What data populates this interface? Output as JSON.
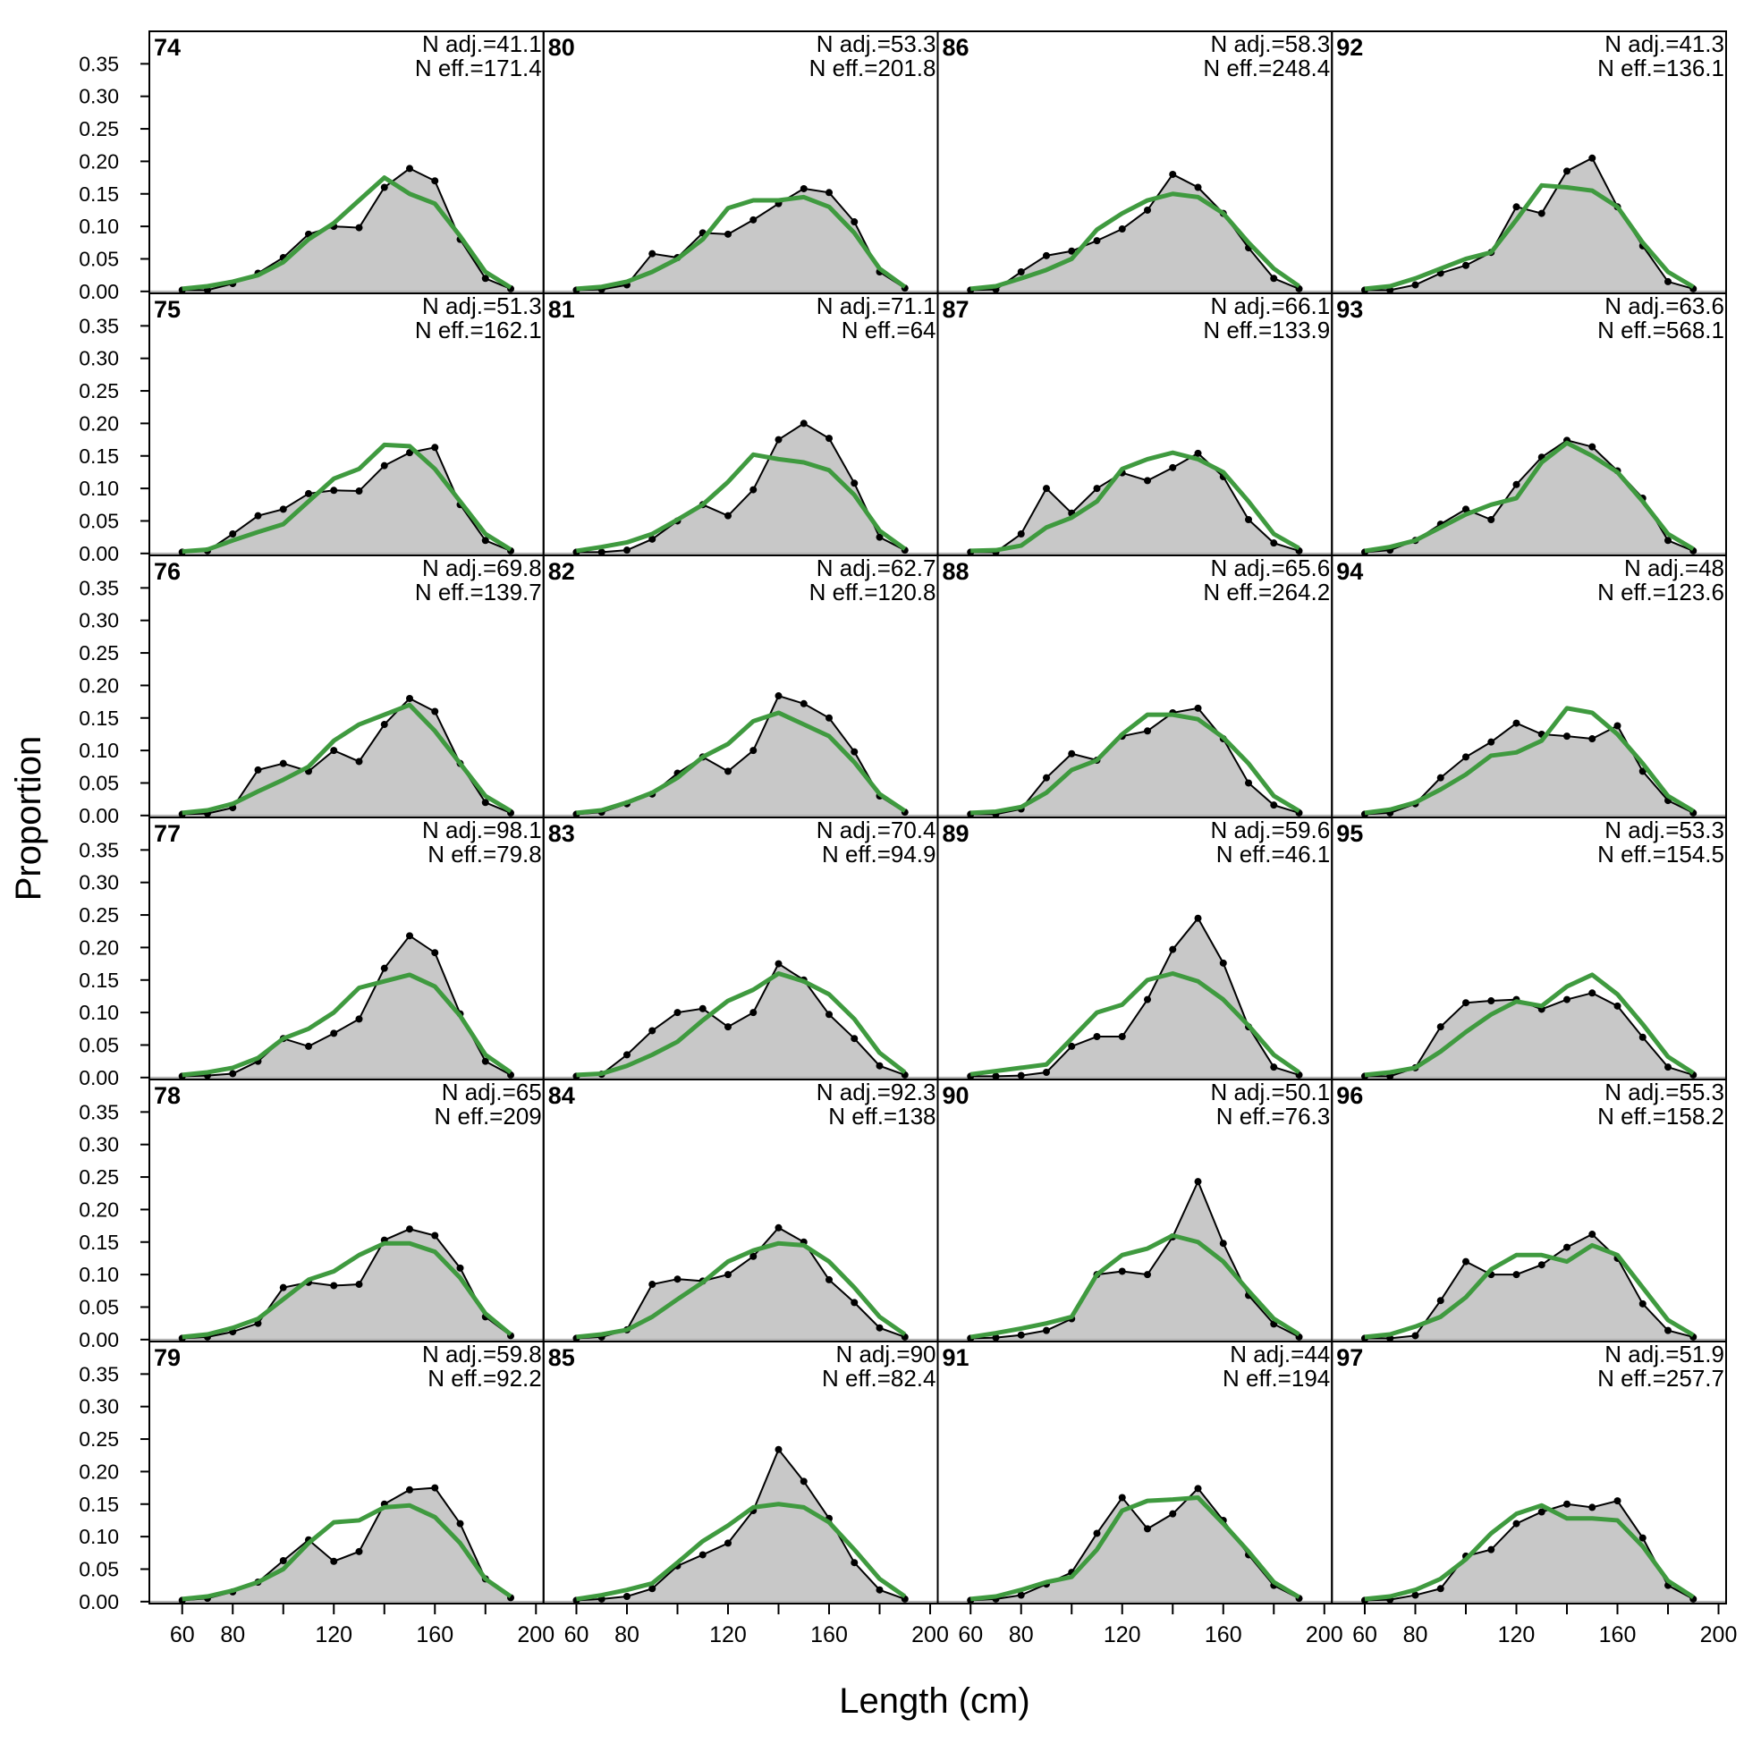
{
  "figure": {
    "xlabel": "Length (cm)",
    "ylabel": "Proportion",
    "xlim": [
      47,
      203
    ],
    "ylim": [
      -0.003,
      0.4
    ],
    "x_ticks": [
      60,
      80,
      120,
      160,
      200
    ],
    "y_ticks": [
      "0.00",
      "0.05",
      "0.10",
      "0.15",
      "0.20",
      "0.25",
      "0.30",
      "0.35"
    ],
    "colors": {
      "observed_fill": "#c8c8c8",
      "observed_line": "#000000",
      "expected_line": "#3f9a3f",
      "zero_line": "#b0b0b0"
    }
  },
  "chart_data": {
    "type": "line",
    "layout": "6 rows x 4 columns small multiples",
    "x": [
      60,
      70,
      80,
      90,
      100,
      110,
      120,
      130,
      140,
      150,
      160,
      170,
      180,
      190
    ],
    "panels": [
      {
        "year": "74",
        "n_adj": "N adj.=41.1",
        "n_eff": "N eff.=171.4",
        "observed": [
          0.002,
          0.002,
          0.012,
          0.028,
          0.052,
          0.088,
          0.1,
          0.098,
          0.16,
          0.189,
          0.17,
          0.08,
          0.02,
          0.004
        ],
        "expected": [
          0.004,
          0.008,
          0.015,
          0.025,
          0.045,
          0.08,
          0.105,
          0.14,
          0.175,
          0.15,
          0.135,
          0.085,
          0.03,
          0.006
        ]
      },
      {
        "year": "80",
        "n_adj": "N adj.=53.3",
        "n_eff": "N eff.=201.8",
        "observed": [
          0.002,
          0.003,
          0.01,
          0.058,
          0.052,
          0.09,
          0.088,
          0.11,
          0.135,
          0.158,
          0.152,
          0.107,
          0.03,
          0.005
        ],
        "expected": [
          0.004,
          0.007,
          0.015,
          0.03,
          0.05,
          0.08,
          0.128,
          0.14,
          0.14,
          0.145,
          0.13,
          0.09,
          0.035,
          0.007
        ]
      },
      {
        "year": "86",
        "n_adj": "N adj.=58.3",
        "n_eff": "N eff.=248.4",
        "observed": [
          0.002,
          0.003,
          0.03,
          0.055,
          0.062,
          0.078,
          0.096,
          0.125,
          0.18,
          0.16,
          0.12,
          0.067,
          0.02,
          0.004
        ],
        "expected": [
          0.004,
          0.008,
          0.02,
          0.033,
          0.05,
          0.095,
          0.12,
          0.14,
          0.15,
          0.145,
          0.12,
          0.075,
          0.035,
          0.008
        ]
      },
      {
        "year": "92",
        "n_adj": "N adj.=41.3",
        "n_eff": "N eff.=136.1",
        "observed": [
          0.002,
          0.002,
          0.01,
          0.028,
          0.04,
          0.06,
          0.13,
          0.12,
          0.185,
          0.205,
          0.13,
          0.07,
          0.015,
          0.004
        ],
        "expected": [
          0.004,
          0.008,
          0.02,
          0.035,
          0.05,
          0.06,
          0.11,
          0.163,
          0.16,
          0.155,
          0.13,
          0.075,
          0.03,
          0.007
        ]
      },
      {
        "year": "75",
        "n_adj": "N adj.=51.3",
        "n_eff": "N eff.=162.1",
        "observed": [
          0.002,
          0.004,
          0.03,
          0.058,
          0.068,
          0.092,
          0.097,
          0.096,
          0.135,
          0.155,
          0.163,
          0.075,
          0.02,
          0.004
        ],
        "expected": [
          0.003,
          0.006,
          0.02,
          0.033,
          0.045,
          0.08,
          0.115,
          0.13,
          0.167,
          0.165,
          0.13,
          0.08,
          0.03,
          0.006
        ]
      },
      {
        "year": "81",
        "n_adj": "N adj.=71.1",
        "n_eff": "N eff.=64",
        "observed": [
          0.002,
          0.002,
          0.005,
          0.022,
          0.05,
          0.075,
          0.058,
          0.098,
          0.175,
          0.2,
          0.177,
          0.108,
          0.025,
          0.005
        ],
        "expected": [
          0.004,
          0.01,
          0.017,
          0.03,
          0.052,
          0.075,
          0.11,
          0.152,
          0.145,
          0.14,
          0.128,
          0.09,
          0.035,
          0.007
        ]
      },
      {
        "year": "87",
        "n_adj": "N adj.=66.1",
        "n_eff": "N eff.=133.9",
        "observed": [
          0.002,
          0.002,
          0.03,
          0.1,
          0.062,
          0.1,
          0.124,
          0.112,
          0.132,
          0.154,
          0.118,
          0.052,
          0.016,
          0.004
        ],
        "expected": [
          0.004,
          0.005,
          0.012,
          0.04,
          0.055,
          0.08,
          0.13,
          0.145,
          0.155,
          0.145,
          0.125,
          0.08,
          0.03,
          0.008
        ]
      },
      {
        "year": "93",
        "n_adj": "N adj.=63.6",
        "n_eff": "N eff.=568.1",
        "observed": [
          0.002,
          0.005,
          0.02,
          0.045,
          0.068,
          0.052,
          0.106,
          0.148,
          0.174,
          0.164,
          0.127,
          0.085,
          0.02,
          0.004
        ],
        "expected": [
          0.004,
          0.01,
          0.02,
          0.04,
          0.06,
          0.075,
          0.085,
          0.14,
          0.17,
          0.15,
          0.125,
          0.08,
          0.03,
          0.007
        ]
      },
      {
        "year": "76",
        "n_adj": "N adj.=69.8",
        "n_eff": "N eff.=139.7",
        "observed": [
          0.002,
          0.003,
          0.012,
          0.07,
          0.08,
          0.068,
          0.1,
          0.083,
          0.14,
          0.18,
          0.16,
          0.08,
          0.02,
          0.004
        ],
        "expected": [
          0.004,
          0.008,
          0.018,
          0.037,
          0.055,
          0.075,
          0.115,
          0.14,
          0.155,
          0.17,
          0.13,
          0.08,
          0.03,
          0.007
        ]
      },
      {
        "year": "82",
        "n_adj": "N adj.=62.7",
        "n_eff": "N eff.=120.8",
        "observed": [
          0.002,
          0.005,
          0.018,
          0.033,
          0.065,
          0.09,
          0.068,
          0.1,
          0.184,
          0.172,
          0.15,
          0.098,
          0.03,
          0.005
        ],
        "expected": [
          0.004,
          0.008,
          0.02,
          0.035,
          0.058,
          0.09,
          0.11,
          0.145,
          0.158,
          0.14,
          0.122,
          0.082,
          0.033,
          0.007
        ]
      },
      {
        "year": "88",
        "n_adj": "N adj.=65.6",
        "n_eff": "N eff.=264.2",
        "observed": [
          0.002,
          0.002,
          0.01,
          0.058,
          0.095,
          0.085,
          0.122,
          0.13,
          0.158,
          0.165,
          0.118,
          0.05,
          0.016,
          0.004
        ],
        "expected": [
          0.004,
          0.006,
          0.013,
          0.035,
          0.07,
          0.085,
          0.125,
          0.155,
          0.155,
          0.148,
          0.12,
          0.08,
          0.03,
          0.007
        ]
      },
      {
        "year": "94",
        "n_adj": "N adj.=48",
        "n_eff": "N eff.=123.6",
        "observed": [
          0.002,
          0.004,
          0.018,
          0.058,
          0.09,
          0.113,
          0.142,
          0.125,
          0.122,
          0.118,
          0.138,
          0.068,
          0.023,
          0.004
        ],
        "expected": [
          0.004,
          0.009,
          0.02,
          0.04,
          0.063,
          0.092,
          0.097,
          0.115,
          0.165,
          0.158,
          0.125,
          0.08,
          0.03,
          0.007
        ]
      },
      {
        "year": "77",
        "n_adj": "N adj.=98.1",
        "n_eff": "N eff.=79.8",
        "observed": [
          0.002,
          0.003,
          0.006,
          0.025,
          0.06,
          0.048,
          0.068,
          0.09,
          0.168,
          0.218,
          0.192,
          0.098,
          0.025,
          0.004
        ],
        "expected": [
          0.004,
          0.008,
          0.015,
          0.03,
          0.06,
          0.075,
          0.1,
          0.138,
          0.148,
          0.158,
          0.14,
          0.095,
          0.035,
          0.008
        ]
      },
      {
        "year": "83",
        "n_adj": "N adj.=70.4",
        "n_eff": "N eff.=94.9",
        "observed": [
          0.002,
          0.005,
          0.035,
          0.072,
          0.1,
          0.106,
          0.078,
          0.1,
          0.175,
          0.15,
          0.097,
          0.06,
          0.018,
          0.004
        ],
        "expected": [
          0.004,
          0.006,
          0.018,
          0.035,
          0.055,
          0.088,
          0.118,
          0.135,
          0.16,
          0.148,
          0.128,
          0.09,
          0.038,
          0.008
        ]
      },
      {
        "year": "89",
        "n_adj": "N adj.=59.6",
        "n_eff": "N eff.=46.1",
        "observed": [
          0.002,
          0.002,
          0.003,
          0.008,
          0.048,
          0.063,
          0.063,
          0.12,
          0.197,
          0.245,
          0.176,
          0.078,
          0.016,
          0.004
        ],
        "expected": [
          0.005,
          0.01,
          0.015,
          0.02,
          0.06,
          0.1,
          0.112,
          0.15,
          0.16,
          0.148,
          0.12,
          0.08,
          0.035,
          0.008
        ]
      },
      {
        "year": "95",
        "n_adj": "N adj.=53.3",
        "n_eff": "N eff.=154.5",
        "observed": [
          0.002,
          0.002,
          0.015,
          0.078,
          0.115,
          0.118,
          0.12,
          0.105,
          0.12,
          0.13,
          0.11,
          0.062,
          0.016,
          0.004
        ],
        "expected": [
          0.004,
          0.008,
          0.015,
          0.04,
          0.07,
          0.097,
          0.117,
          0.11,
          0.14,
          0.158,
          0.128,
          0.082,
          0.032,
          0.007
        ]
      },
      {
        "year": "78",
        "n_adj": "N adj.=65",
        "n_eff": "N eff.=209",
        "observed": [
          0.002,
          0.004,
          0.012,
          0.025,
          0.08,
          0.088,
          0.083,
          0.085,
          0.153,
          0.17,
          0.16,
          0.11,
          0.035,
          0.006
        ],
        "expected": [
          0.004,
          0.008,
          0.018,
          0.032,
          0.062,
          0.092,
          0.105,
          0.13,
          0.148,
          0.148,
          0.135,
          0.095,
          0.04,
          0.008
        ]
      },
      {
        "year": "84",
        "n_adj": "N adj.=92.3",
        "n_eff": "N eff.=138",
        "observed": [
          0.002,
          0.004,
          0.015,
          0.085,
          0.093,
          0.09,
          0.1,
          0.128,
          0.172,
          0.15,
          0.092,
          0.057,
          0.018,
          0.004
        ],
        "expected": [
          0.004,
          0.008,
          0.015,
          0.035,
          0.062,
          0.088,
          0.12,
          0.137,
          0.148,
          0.145,
          0.12,
          0.08,
          0.035,
          0.008
        ]
      },
      {
        "year": "90",
        "n_adj": "N adj.=50.1",
        "n_eff": "N eff.=76.3",
        "observed": [
          0.002,
          0.003,
          0.007,
          0.014,
          0.032,
          0.1,
          0.105,
          0.1,
          0.158,
          0.243,
          0.148,
          0.068,
          0.024,
          0.004
        ],
        "expected": [
          0.004,
          0.01,
          0.017,
          0.025,
          0.035,
          0.1,
          0.13,
          0.14,
          0.16,
          0.15,
          0.12,
          0.075,
          0.032,
          0.008
        ]
      },
      {
        "year": "96",
        "n_adj": "N adj.=55.3",
        "n_eff": "N eff.=158.2",
        "observed": [
          0.002,
          0.002,
          0.006,
          0.06,
          0.12,
          0.1,
          0.1,
          0.115,
          0.142,
          0.162,
          0.125,
          0.055,
          0.014,
          0.004
        ],
        "expected": [
          0.004,
          0.008,
          0.02,
          0.035,
          0.065,
          0.108,
          0.13,
          0.13,
          0.12,
          0.145,
          0.13,
          0.08,
          0.03,
          0.007
        ]
      },
      {
        "year": "79",
        "n_adj": "N adj.=59.8",
        "n_eff": "N eff.=92.2",
        "observed": [
          0.002,
          0.005,
          0.015,
          0.03,
          0.063,
          0.095,
          0.062,
          0.077,
          0.15,
          0.172,
          0.175,
          0.12,
          0.035,
          0.006
        ],
        "expected": [
          0.004,
          0.008,
          0.017,
          0.03,
          0.05,
          0.09,
          0.122,
          0.125,
          0.145,
          0.148,
          0.13,
          0.09,
          0.035,
          0.008
        ]
      },
      {
        "year": "85",
        "n_adj": "N adj.=90",
        "n_eff": "N eff.=82.4",
        "observed": [
          0.002,
          0.004,
          0.008,
          0.02,
          0.055,
          0.072,
          0.09,
          0.14,
          0.234,
          0.185,
          0.128,
          0.06,
          0.018,
          0.004
        ],
        "expected": [
          0.004,
          0.01,
          0.018,
          0.028,
          0.06,
          0.093,
          0.117,
          0.145,
          0.15,
          0.145,
          0.122,
          0.08,
          0.035,
          0.008
        ]
      },
      {
        "year": "91",
        "n_adj": "N adj.=44",
        "n_eff": "N eff.=194",
        "observed": [
          0.002,
          0.004,
          0.01,
          0.027,
          0.045,
          0.105,
          0.16,
          0.112,
          0.135,
          0.174,
          0.125,
          0.072,
          0.025,
          0.005
        ],
        "expected": [
          0.004,
          0.008,
          0.018,
          0.03,
          0.038,
          0.08,
          0.14,
          0.155,
          0.157,
          0.16,
          0.12,
          0.077,
          0.03,
          0.007
        ]
      },
      {
        "year": "97",
        "n_adj": "N adj.=51.9",
        "n_eff": "N eff.=257.7",
        "observed": [
          0.002,
          0.003,
          0.01,
          0.02,
          0.07,
          0.08,
          0.12,
          0.138,
          0.15,
          0.145,
          0.155,
          0.098,
          0.025,
          0.004
        ],
        "expected": [
          0.004,
          0.008,
          0.018,
          0.035,
          0.065,
          0.105,
          0.135,
          0.148,
          0.128,
          0.128,
          0.125,
          0.085,
          0.032,
          0.007
        ]
      }
    ]
  }
}
